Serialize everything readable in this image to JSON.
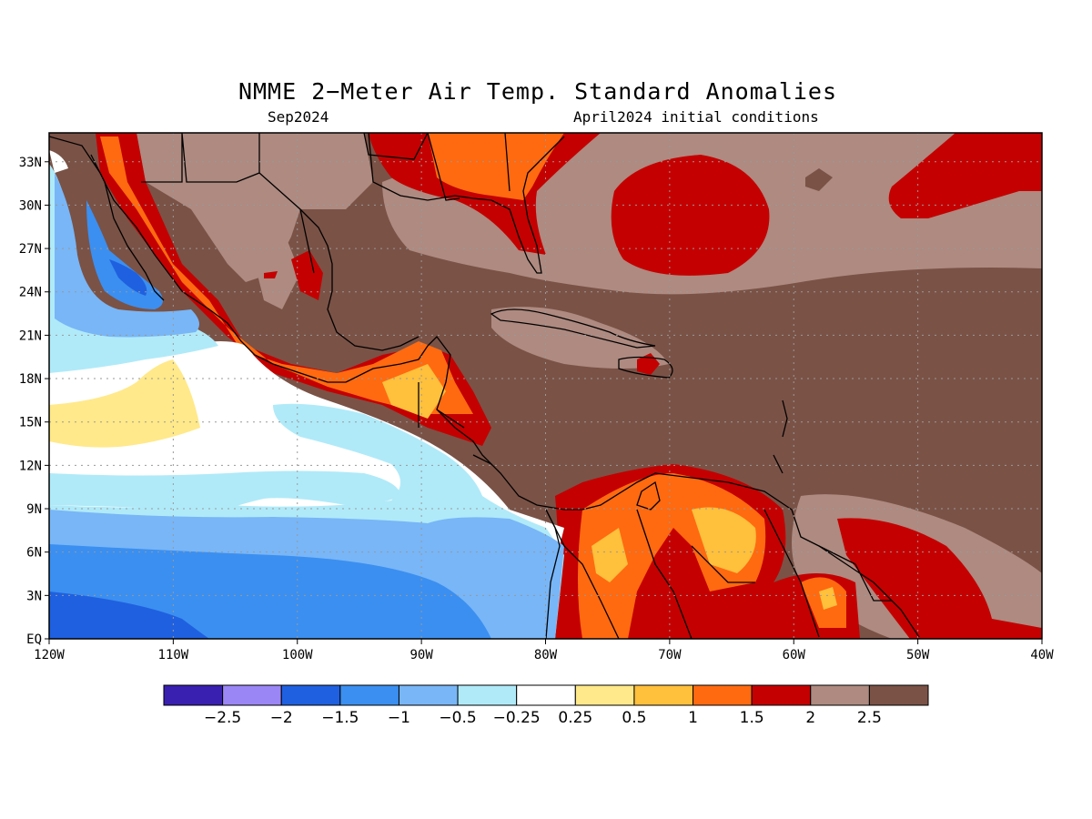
{
  "title": "NMME 2−Meter Air Temp. Standard Anomalies",
  "subtitle_left": "Sep2024",
  "subtitle_right": "April2024 initial conditions",
  "map": {
    "lon_range": [
      -120,
      -40
    ],
    "lat_range": [
      0,
      35
    ],
    "grid": true,
    "lon_ticks": [
      {
        "value": -120,
        "label": "120W"
      },
      {
        "value": -110,
        "label": "110W"
      },
      {
        "value": -100,
        "label": "100W"
      },
      {
        "value": -90,
        "label": "90W"
      },
      {
        "value": -80,
        "label": "80W"
      },
      {
        "value": -70,
        "label": "70W"
      },
      {
        "value": -60,
        "label": "60W"
      },
      {
        "value": -50,
        "label": "50W"
      },
      {
        "value": -40,
        "label": "40W"
      }
    ],
    "lat_ticks": [
      {
        "value": 0,
        "label": "EQ"
      },
      {
        "value": 3,
        "label": "3N"
      },
      {
        "value": 6,
        "label": "6N"
      },
      {
        "value": 9,
        "label": "9N"
      },
      {
        "value": 12,
        "label": "12N"
      },
      {
        "value": 15,
        "label": "15N"
      },
      {
        "value": 18,
        "label": "18N"
      },
      {
        "value": 21,
        "label": "21N"
      },
      {
        "value": 24,
        "label": "24N"
      },
      {
        "value": 27,
        "label": "27N"
      },
      {
        "value": 30,
        "label": "30N"
      },
      {
        "value": 33,
        "label": "33N"
      }
    ]
  },
  "colorbar": {
    "colors": [
      "#3a20b0",
      "#9b86f5",
      "#1f60e0",
      "#3b8ff0",
      "#78b6f7",
      "#b0eaf9",
      "#ffffff",
      "#ffe98a",
      "#ffc03c",
      "#ff6a10",
      "#c40000",
      "#ae8a80",
      "#7a5246"
    ],
    "labels": [
      "−2.5",
      "−2",
      "−1.5",
      "−1",
      "−0.5",
      "−0.25",
      "0.25",
      "0.5",
      "1",
      "1.5",
      "2",
      "2.5"
    ]
  }
}
